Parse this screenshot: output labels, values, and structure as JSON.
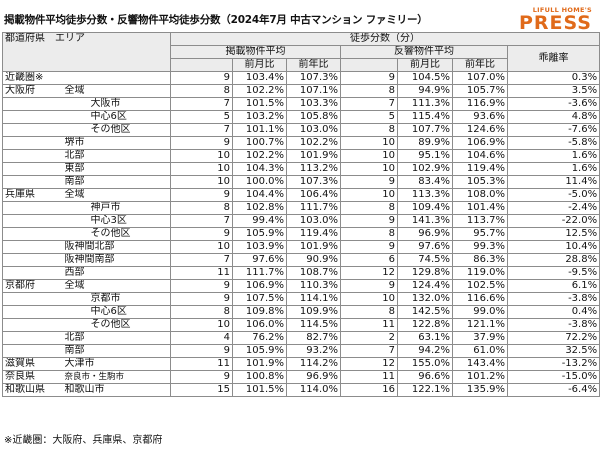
{
  "title": "掲載物件平均徒歩分数・反響物件平均徒歩分数（2024年7月 中古マンション ファミリー）",
  "logo": {
    "line1": "LIFULL HOME'S",
    "line2": "PRESS",
    "color": "#e06a1a"
  },
  "header": {
    "region": "都道府県　エリア",
    "walk_minutes": "徒歩分数（分）",
    "listed_avg": "掲載物件平均",
    "response_avg": "反響物件平均",
    "divergence": "乖離率",
    "mom": "前月比",
    "yoy": "前年比"
  },
  "rows": [
    {
      "pref": "近畿圏※",
      "area": "",
      "sub": "",
      "c1": "9",
      "c2": "103.4%",
      "c3": "107.3%",
      "c4": "9",
      "c5": "104.5%",
      "c6": "107.0%",
      "c7": "0.3%"
    },
    {
      "pref": "大阪府",
      "area": "全域",
      "sub": "",
      "c1": "8",
      "c2": "102.2%",
      "c3": "107.1%",
      "c4": "8",
      "c5": "94.9%",
      "c6": "105.7%",
      "c7": "3.5%"
    },
    {
      "pref": "",
      "area": "",
      "sub": "大阪市",
      "c1": "7",
      "c2": "101.5%",
      "c3": "103.3%",
      "c4": "7",
      "c5": "111.3%",
      "c6": "116.9%",
      "c7": "-3.6%"
    },
    {
      "pref": "",
      "area": "",
      "sub": "中心6区",
      "c1": "5",
      "c2": "103.2%",
      "c3": "105.8%",
      "c4": "5",
      "c5": "115.4%",
      "c6": "93.6%",
      "c7": "4.8%"
    },
    {
      "pref": "",
      "area": "",
      "sub": "その他区",
      "c1": "7",
      "c2": "101.1%",
      "c3": "103.0%",
      "c4": "8",
      "c5": "107.7%",
      "c6": "124.6%",
      "c7": "-7.6%"
    },
    {
      "pref": "",
      "area": "堺市",
      "sub": "",
      "c1": "9",
      "c2": "100.7%",
      "c3": "102.2%",
      "c4": "10",
      "c5": "89.9%",
      "c6": "106.9%",
      "c7": "-5.8%"
    },
    {
      "pref": "",
      "area": "北部",
      "sub": "",
      "c1": "10",
      "c2": "102.2%",
      "c3": "101.9%",
      "c4": "10",
      "c5": "95.1%",
      "c6": "104.6%",
      "c7": "1.6%"
    },
    {
      "pref": "",
      "area": "東部",
      "sub": "",
      "c1": "10",
      "c2": "104.3%",
      "c3": "113.2%",
      "c4": "10",
      "c5": "102.9%",
      "c6": "119.4%",
      "c7": "1.6%"
    },
    {
      "pref": "",
      "area": "南部",
      "sub": "",
      "c1": "10",
      "c2": "100.0%",
      "c3": "107.3%",
      "c4": "9",
      "c5": "83.4%",
      "c6": "105.3%",
      "c7": "11.4%"
    },
    {
      "pref": "兵庫県",
      "area": "全域",
      "sub": "",
      "c1": "9",
      "c2": "104.4%",
      "c3": "106.4%",
      "c4": "10",
      "c5": "113.3%",
      "c6": "108.0%",
      "c7": "-5.0%"
    },
    {
      "pref": "",
      "area": "",
      "sub": "神戸市",
      "c1": "8",
      "c2": "102.8%",
      "c3": "111.7%",
      "c4": "8",
      "c5": "109.4%",
      "c6": "101.4%",
      "c7": "-2.4%"
    },
    {
      "pref": "",
      "area": "",
      "sub": "中心3区",
      "c1": "7",
      "c2": "99.4%",
      "c3": "103.0%",
      "c4": "9",
      "c5": "141.3%",
      "c6": "113.7%",
      "c7": "-22.0%"
    },
    {
      "pref": "",
      "area": "",
      "sub": "その他区",
      "c1": "9",
      "c2": "105.9%",
      "c3": "119.4%",
      "c4": "8",
      "c5": "96.9%",
      "c6": "95.7%",
      "c7": "12.5%"
    },
    {
      "pref": "",
      "area": "阪神間北部",
      "sub": "",
      "c1": "10",
      "c2": "103.9%",
      "c3": "101.9%",
      "c4": "9",
      "c5": "97.6%",
      "c6": "99.3%",
      "c7": "10.4%"
    },
    {
      "pref": "",
      "area": "阪神間南部",
      "sub": "",
      "c1": "7",
      "c2": "97.6%",
      "c3": "90.9%",
      "c4": "6",
      "c5": "74.5%",
      "c6": "86.3%",
      "c7": "28.8%"
    },
    {
      "pref": "",
      "area": "西部",
      "sub": "",
      "c1": "11",
      "c2": "111.7%",
      "c3": "108.7%",
      "c4": "12",
      "c5": "129.8%",
      "c6": "119.0%",
      "c7": "-9.5%"
    },
    {
      "pref": "京都府",
      "area": "全域",
      "sub": "",
      "c1": "9",
      "c2": "106.9%",
      "c3": "110.3%",
      "c4": "9",
      "c5": "124.4%",
      "c6": "102.5%",
      "c7": "6.1%"
    },
    {
      "pref": "",
      "area": "",
      "sub": "京都市",
      "c1": "9",
      "c2": "107.5%",
      "c3": "114.1%",
      "c4": "10",
      "c5": "132.0%",
      "c6": "116.6%",
      "c7": "-3.8%"
    },
    {
      "pref": "",
      "area": "",
      "sub": "中心6区",
      "c1": "8",
      "c2": "109.8%",
      "c3": "109.9%",
      "c4": "8",
      "c5": "142.5%",
      "c6": "99.0%",
      "c7": "0.4%"
    },
    {
      "pref": "",
      "area": "",
      "sub": "その他区",
      "c1": "10",
      "c2": "106.0%",
      "c3": "114.5%",
      "c4": "11",
      "c5": "122.8%",
      "c6": "121.1%",
      "c7": "-3.8%"
    },
    {
      "pref": "",
      "area": "北部",
      "sub": "",
      "c1": "4",
      "c2": "76.2%",
      "c3": "82.7%",
      "c4": "2",
      "c5": "63.1%",
      "c6": "37.9%",
      "c7": "72.2%"
    },
    {
      "pref": "",
      "area": "南部",
      "sub": "",
      "c1": "9",
      "c2": "105.9%",
      "c3": "93.2%",
      "c4": "7",
      "c5": "94.2%",
      "c6": "61.0%",
      "c7": "32.5%"
    },
    {
      "pref": "滋賀県",
      "area": "大津市",
      "sub": "",
      "c1": "11",
      "c2": "101.9%",
      "c3": "114.2%",
      "c4": "12",
      "c5": "155.0%",
      "c6": "143.4%",
      "c7": "-13.2%"
    },
    {
      "pref": "奈良県",
      "area": "奈良市・生駒市",
      "sub": "",
      "c1": "9",
      "c2": "100.8%",
      "c3": "96.9%",
      "c4": "11",
      "c5": "96.6%",
      "c6": "101.2%",
      "c7": "-15.0%"
    },
    {
      "pref": "和歌山県",
      "area": "和歌山市",
      "sub": "",
      "c1": "15",
      "c2": "101.5%",
      "c3": "114.0%",
      "c4": "16",
      "c5": "122.1%",
      "c6": "135.9%",
      "c7": "-6.4%"
    }
  ],
  "footnote": "※近畿圏：大阪府、兵庫県、京都府"
}
